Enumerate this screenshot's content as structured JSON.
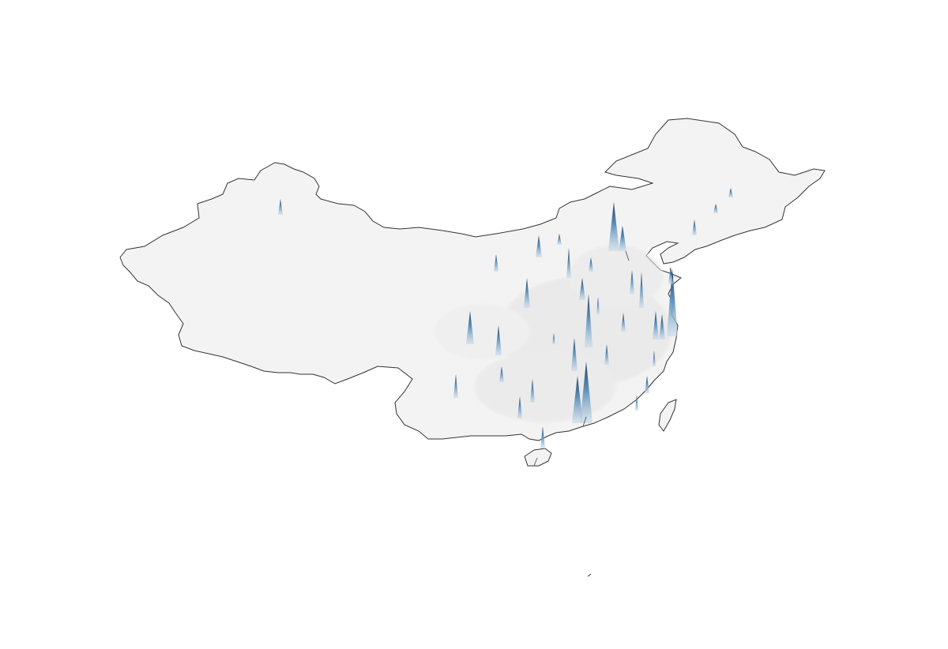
{
  "map": {
    "subject": "population-density-relief",
    "colors": {
      "background": "#ffffff",
      "land": "#f3f3f3",
      "land_shadow": "#e2e2e2",
      "border": "#333333",
      "spike_light": "#c9dbe9",
      "spike_mid": "#5f90bb",
      "spike_dark": "#1f3f5f"
    },
    "regions": [
      {
        "name": "mainland"
      },
      {
        "name": "taiwan"
      },
      {
        "name": "hainan"
      },
      {
        "name": "south-sea-islet"
      }
    ]
  }
}
